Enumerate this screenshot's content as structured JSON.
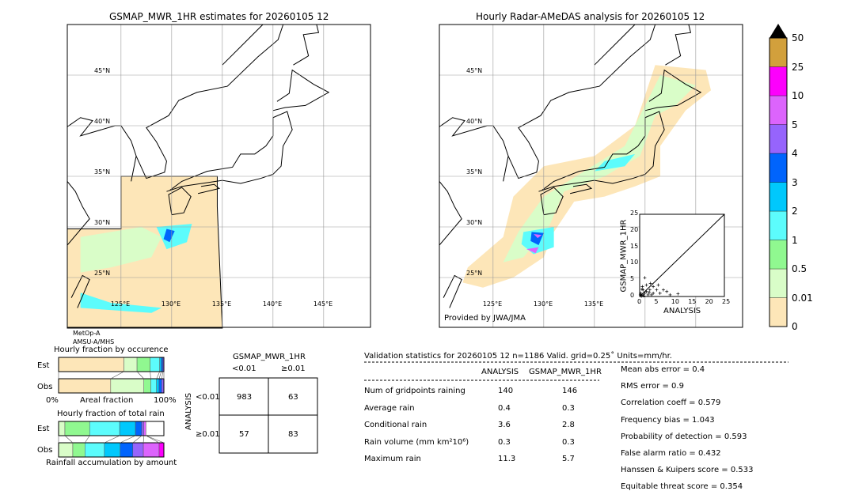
{
  "colors": {
    "levels": [
      "0",
      "0.01",
      "0.5",
      "1",
      "2",
      "3",
      "4",
      "5",
      "10",
      "25",
      "50"
    ],
    "fills": [
      "#fde6b8",
      "#d9fdc8",
      "#90f890",
      "#5cfcfc",
      "#00c8fc",
      "#0064fc",
      "#9664fc",
      "#dc64fc",
      "#fc00fc",
      "#d2a03c"
    ],
    "over": "#000000"
  },
  "chart_data": [
    {
      "type": "map",
      "title": "GSMAP_MWR_1HR estimates for 20260105 12",
      "lat_labels": [
        "45°N",
        "40°N",
        "35°N",
        "30°N",
        "25°N"
      ],
      "lon_labels": [
        "125°E",
        "130°E",
        "135°E",
        "140°E",
        "145°E"
      ],
      "sensor": [
        "MetOp-A",
        "AMSU-A/MHS"
      ]
    },
    {
      "type": "map",
      "title": "Hourly Radar-AMeDAS analysis for 20260105 12",
      "lat_labels": [
        "45°N",
        "40°N",
        "35°N",
        "30°N",
        "25°N"
      ],
      "lon_labels": [
        "125°E",
        "130°E",
        "135°E"
      ],
      "credit": "Provided by JWA/JMA"
    },
    {
      "type": "scatter",
      "xlabel": "ANALYSIS",
      "ylabel": "GSMAP_MWR_1HR",
      "xlim": [
        0,
        25
      ],
      "ylim": [
        0,
        25
      ],
      "ticks": [
        "0",
        "5",
        "10",
        "15",
        "20",
        "25"
      ],
      "points": [
        [
          0.5,
          0.3
        ],
        [
          1,
          0.5
        ],
        [
          1.5,
          1
        ],
        [
          2,
          1.5
        ],
        [
          0.3,
          1
        ],
        [
          2.5,
          0.5
        ],
        [
          3,
          2
        ],
        [
          1,
          2
        ],
        [
          4,
          1
        ],
        [
          5,
          2
        ],
        [
          0.8,
          3
        ],
        [
          2,
          3.5
        ],
        [
          3.5,
          0.5
        ],
        [
          6,
          1
        ],
        [
          7,
          2
        ],
        [
          8,
          1.5
        ],
        [
          9,
          0.5
        ],
        [
          11.3,
          0.8
        ],
        [
          4,
          3
        ],
        [
          1.5,
          5.7
        ],
        [
          0.5,
          0.1
        ],
        [
          0.2,
          0.5
        ],
        [
          1.2,
          0.2
        ],
        [
          2.8,
          1.2
        ],
        [
          3.2,
          4
        ],
        [
          5.5,
          3.5
        ],
        [
          0.7,
          2.2
        ]
      ]
    },
    {
      "type": "bar",
      "title": "Hourly fraction by occurence",
      "categories": [
        "Est",
        "Obs"
      ],
      "xlabel": "Areal fraction",
      "x_ticks": [
        "0%",
        "100%"
      ],
      "series": [
        [
          0.62,
          0.125,
          0.125,
          0.09,
          0.015,
          0.015,
          0.01
        ],
        [
          0.495,
          0.315,
          0.065,
          0.055,
          0.025,
          0.025,
          0.02
        ]
      ]
    },
    {
      "type": "bar",
      "title": "Hourly fraction of total rain",
      "categories": [
        "Est",
        "Obs"
      ],
      "xlabel": "Rainfall accumulation by amount",
      "series": [
        [
          0.06,
          0.235,
          0.285,
          0.15,
          0.06,
          0.02,
          0.02,
          0
        ],
        [
          0.135,
          0.115,
          0.185,
          0.15,
          0.12,
          0.1,
          0.15,
          0.045
        ]
      ]
    },
    {
      "type": "table",
      "title": "GSMAP_MWR_1HR",
      "col_labels": [
        "<0.01",
        "≥0.01"
      ],
      "row_title": "ANALYSIS",
      "row_labels": [
        "<0.01",
        "≥0.01"
      ],
      "cells": [
        [
          "983",
          "63"
        ],
        [
          "57",
          "83"
        ]
      ]
    }
  ],
  "stats": {
    "header": "Validation statistics for 20260105 12  n=1186 Valid. grid=0.25˚ Units=mm/hr.",
    "cols": [
      "ANALYSIS",
      "GSMAP_MWR_1HR"
    ],
    "rows": [
      {
        "label": "Num of gridpoints raining",
        "a": "140",
        "g": "146"
      },
      {
        "label": "Average rain",
        "a": "0.4",
        "g": "0.3"
      },
      {
        "label": "Conditional rain",
        "a": "3.6",
        "g": "2.8"
      },
      {
        "label": "Rain volume (mm km²10⁶)",
        "a": "0.3",
        "g": "0.3"
      },
      {
        "label": "Maximum rain",
        "a": "11.3",
        "g": "5.7"
      }
    ],
    "scores": [
      "Mean abs error =    0.4",
      "RMS error =    0.9",
      "Correlation coeff =  0.579",
      "Frequency bias =  1.043",
      "Probability of detection =  0.593",
      "False alarm ratio =  0.432",
      "Hanssen & Kuipers score =  0.533",
      "Equitable threat score =  0.354"
    ]
  }
}
